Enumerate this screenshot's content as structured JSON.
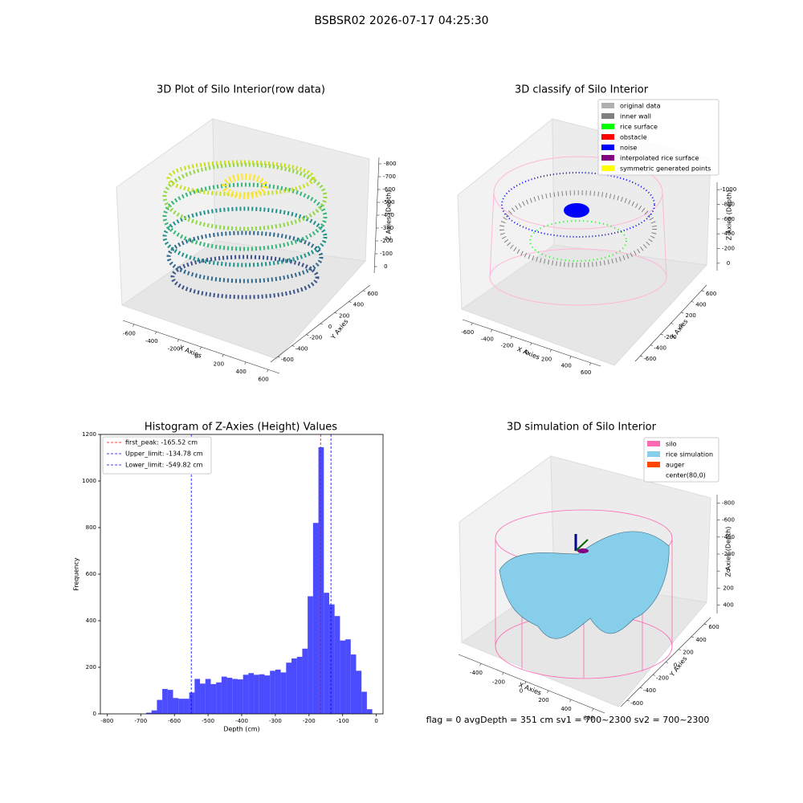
{
  "suptitle": "BSBSR02 2026-07-17 04:25:30",
  "status": "flag = 0     avgDepth = 351 cm  sv1 = 700~2300  sv2 = 700~2300",
  "chart_data": [
    {
      "type": "scatter3d",
      "title": "3D Plot of Silo Interior(row data)",
      "xlabel": "X Axies",
      "ylabel": "Y Axies",
      "zlabel": "Z Axies (Depth)",
      "xlim": [
        -700,
        700
      ],
      "xticks": [
        -600,
        -400,
        -200,
        0,
        200,
        400,
        600
      ],
      "ylim": [
        -700,
        700
      ],
      "yticks": [
        -600,
        -400,
        -200,
        0,
        200,
        400,
        600
      ],
      "zlim": [
        -850,
        50
      ],
      "zticks": [
        0,
        -100,
        -200,
        -300,
        -400,
        -500,
        -600,
        -700,
        -800
      ]
    },
    {
      "type": "scatter3d",
      "title": "3D classify of Silo Interior",
      "xlabel": "X Axies",
      "ylabel": "Y Axies",
      "zlabel": "Z Axies (Depth)",
      "xlim": [
        -700,
        700
      ],
      "xticks": [
        -600,
        -400,
        -200,
        0,
        200,
        400,
        600
      ],
      "ylim": [
        -700,
        700
      ],
      "yticks": [
        -600,
        -400,
        -200,
        0,
        200,
        400,
        600
      ],
      "zlim": [
        -1100,
        100
      ],
      "zticks": [
        0,
        -200,
        -400,
        -600,
        -800,
        -1000
      ],
      "legend": [
        {
          "name": "original data",
          "color": "#b0b0b0"
        },
        {
          "name": "inner wall",
          "color": "#808080"
        },
        {
          "name": "rice surface",
          "color": "#00ff00"
        },
        {
          "name": "obstacle",
          "color": "#ff0000"
        },
        {
          "name": "noise",
          "color": "#0000ff"
        },
        {
          "name": "interpolated rice surface",
          "color": "#800080"
        },
        {
          "name": "symmetric generated points",
          "color": "#ffff00"
        }
      ]
    },
    {
      "type": "histogram",
      "title": "Histogram of Z-Axies (Height) Values",
      "xlabel": "Depth (cm)",
      "ylabel": "Frequency",
      "color": "#0000ff",
      "bins": [
        -684,
        -668,
        -652,
        -636,
        -620,
        -604,
        -588,
        -572,
        -556,
        -540,
        -524,
        -508,
        -492,
        -476,
        -460,
        -444,
        -428,
        -412,
        -396,
        -380,
        -364,
        -348,
        -332,
        -316,
        -300,
        -284,
        -268,
        -252,
        -236,
        -220,
        -204,
        -188,
        -172,
        -156,
        -140,
        -124,
        -108,
        -92,
        -76,
        -60,
        -44,
        -28,
        -12
      ],
      "counts": [
        5,
        15,
        60,
        107,
        103,
        68,
        65,
        65,
        92,
        150,
        130,
        150,
        128,
        135,
        160,
        155,
        150,
        148,
        168,
        175,
        168,
        170,
        165,
        185,
        190,
        178,
        220,
        238,
        245,
        280,
        505,
        820,
        1145,
        520,
        470,
        420,
        315,
        320,
        255,
        185,
        95,
        20
      ],
      "lines": [
        {
          "label": "first_peak: -165.52 cm",
          "value": -165.52,
          "color": "#ff0000"
        },
        {
          "label": "Upper_limit: -134.78 cm",
          "value": -134.78,
          "color": "#0000ff"
        },
        {
          "label": "Lower_limit: -549.82 cm",
          "value": -549.82,
          "color": "#0000ff"
        }
      ],
      "xlim": [
        -820,
        20
      ],
      "xticks": [
        -800,
        -700,
        -600,
        -500,
        -400,
        -300,
        -200,
        -100,
        0
      ],
      "ylim": [
        0,
        1200
      ],
      "yticks": [
        0,
        200,
        400,
        600,
        800,
        1000,
        1200
      ]
    },
    {
      "type": "surface3d",
      "title": "3D simulation of Silo Interior",
      "xlabel": "X Axies",
      "ylabel": "Y Axies",
      "zlabel": "Z Axies (Depth)",
      "xlim": [
        -600,
        700
      ],
      "xticks": [
        -400,
        -200,
        0,
        200,
        400,
        600
      ],
      "ylim": [
        -700,
        700
      ],
      "yticks": [
        -600,
        -400,
        -200,
        0,
        200,
        400,
        600
      ],
      "zlim": [
        -900,
        500
      ],
      "zticks": [
        400,
        200,
        0,
        -200,
        -400,
        -600,
        -800
      ],
      "legend": [
        {
          "name": "silo",
          "color": "#ff69b4"
        },
        {
          "name": "rice simulation",
          "color": "#87ceeb"
        },
        {
          "name": "auger",
          "color": "#ff4500"
        },
        {
          "name": "center(80,0)"
        }
      ]
    }
  ]
}
